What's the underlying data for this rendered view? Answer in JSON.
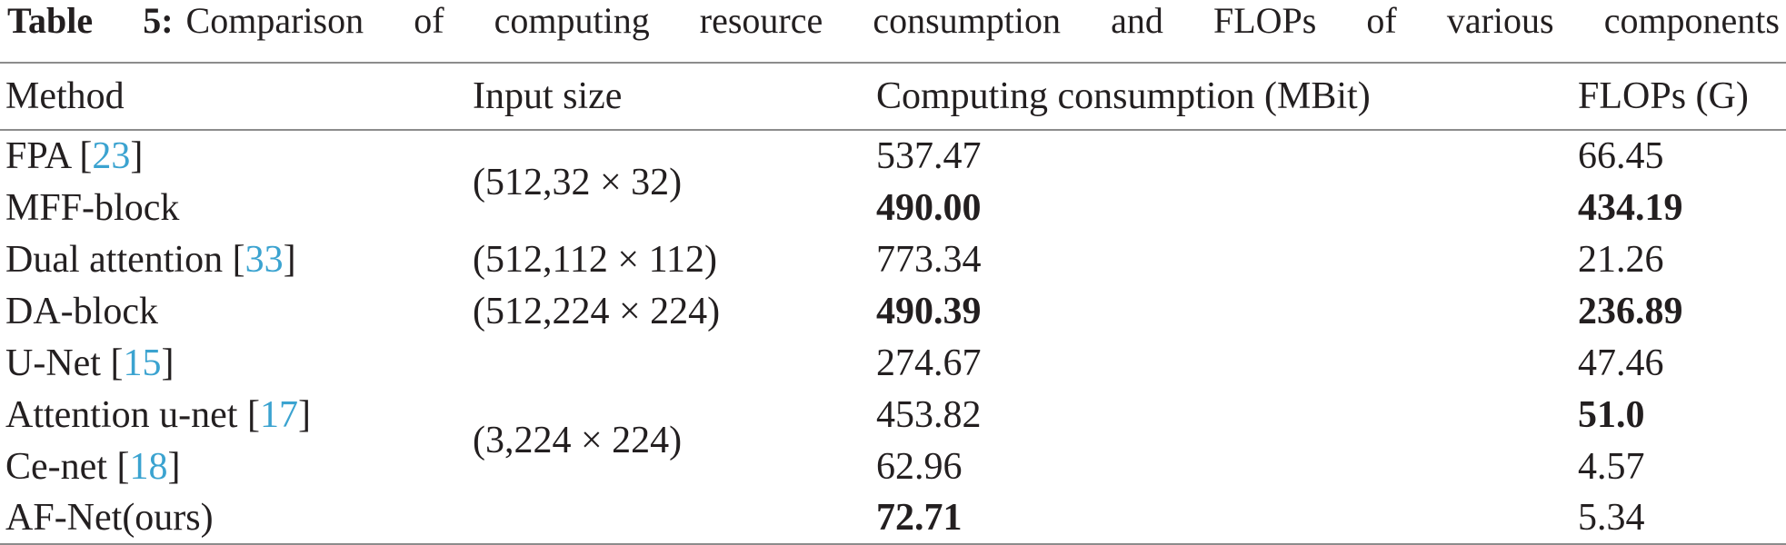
{
  "title": {
    "label": "Table 5:",
    "text": "Comparison of computing resource consumption and FLOPs of various components"
  },
  "table": {
    "headers": [
      "Method",
      "Input size",
      "Computing consumption (MBit)",
      "FLOPs (G)"
    ],
    "rows": [
      {
        "method": [
          "FPA [",
          "23",
          "]"
        ],
        "computing": "537.47",
        "flops": "66.45",
        "computing_bold": false,
        "flops_bold": false
      },
      {
        "method": [
          "MFF-block"
        ],
        "computing": "490.00",
        "flops": "434.19",
        "computing_bold": true,
        "flops_bold": true
      },
      {
        "method": [
          "Dual attention [",
          "33",
          "]"
        ],
        "computing": "773.34",
        "flops": "21.26",
        "computing_bold": false,
        "flops_bold": false
      },
      {
        "method": [
          "DA-block"
        ],
        "computing": "490.39",
        "flops": "236.89",
        "computing_bold": true,
        "flops_bold": true
      },
      {
        "method": [
          "U-Net [",
          "15",
          "]"
        ],
        "computing": "274.67",
        "flops": "47.46",
        "computing_bold": false,
        "flops_bold": false
      },
      {
        "method": [
          "Attention u-net [",
          "17",
          "]"
        ],
        "computing": "453.82",
        "flops": "51.0",
        "computing_bold": false,
        "flops_bold": true
      },
      {
        "method": [
          "Ce-net [",
          "18",
          "]"
        ],
        "computing": "62.96",
        "flops": "4.57",
        "computing_bold": false,
        "flops_bold": false
      },
      {
        "method": [
          "AF-Net(ours)"
        ],
        "computing": "72.71",
        "flops": "5.34",
        "computing_bold": true,
        "flops_bold": false
      }
    ],
    "input_sizes": [
      {
        "text": "(512,32 × 32)",
        "rowspan": 2
      },
      {
        "text": "(512,112 × 112)",
        "rowspan": 1
      },
      {
        "text": "(512,224 × 224)",
        "rowspan": 1
      },
      {
        "text": "(3,224 × 224)",
        "rowspan": 4
      }
    ]
  }
}
